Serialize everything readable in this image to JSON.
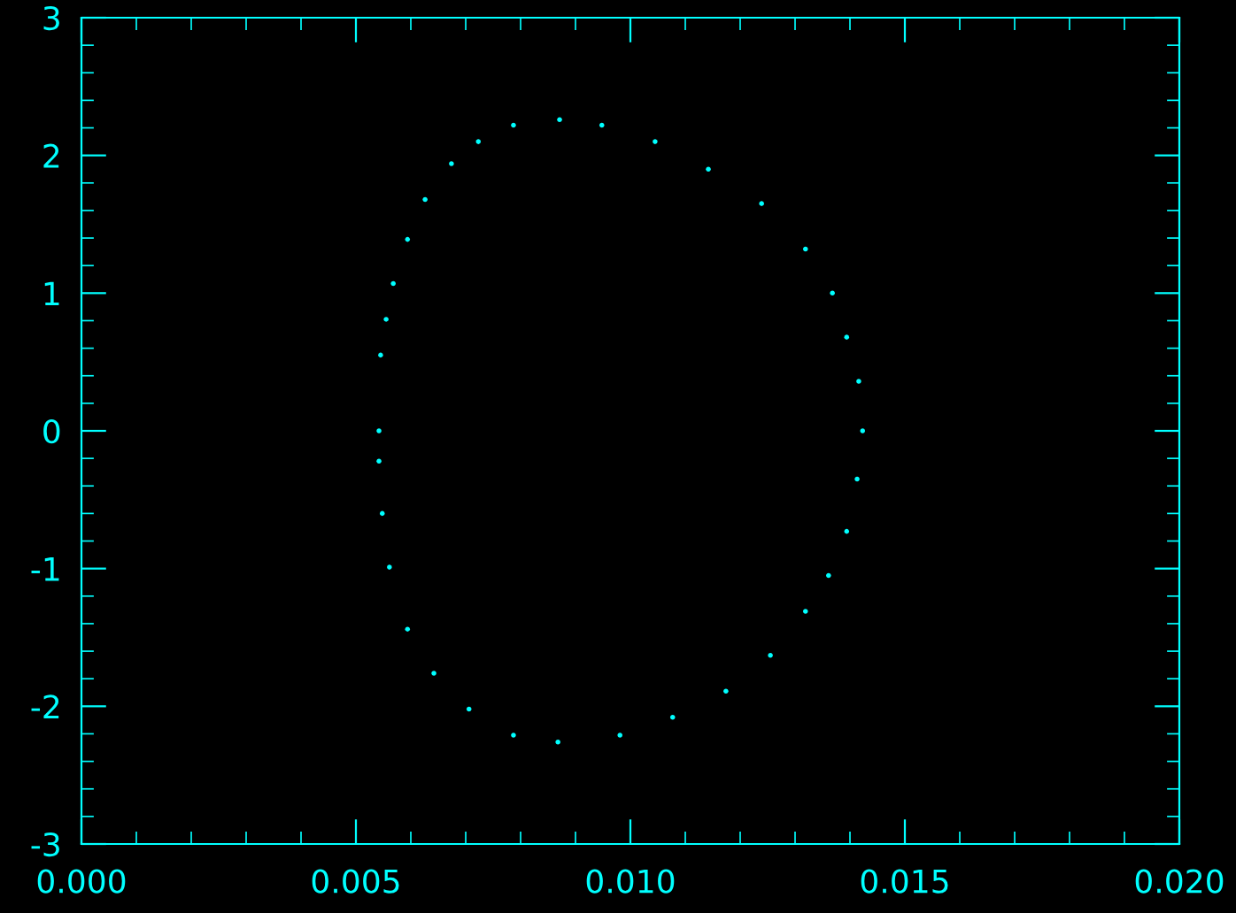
{
  "chart_data": {
    "type": "scatter",
    "x": [
      0.00542,
      0.00545,
      0.00555,
      0.00568,
      0.00594,
      0.00626,
      0.00674,
      0.00723,
      0.00787,
      0.00871,
      0.00948,
      0.01045,
      0.01142,
      0.01239,
      0.01319,
      0.01368,
      0.01394,
      0.01416,
      0.01423,
      0.01413,
      0.01394,
      0.01361,
      0.01319,
      0.01255,
      0.01174,
      0.01077,
      0.00981,
      0.00868,
      0.00787,
      0.00706,
      0.00642,
      0.00594,
      0.00561,
      0.00548,
      0.00542
    ],
    "series": [
      {
        "color": "#00ffff",
        "values": [
          0,
          0.55,
          0.81,
          1.07,
          1.39,
          1.68,
          1.94,
          2.1,
          2.22,
          2.26,
          2.22,
          2.1,
          1.9,
          1.65,
          1.32,
          1.0,
          0.68,
          0.36,
          0,
          -0.35,
          -0.73,
          -1.05,
          -1.31,
          -1.63,
          -1.89,
          -2.08,
          -2.21,
          -2.26,
          -2.21,
          -2.02,
          -1.76,
          -1.44,
          -0.99,
          -0.6,
          -0.22
        ]
      }
    ],
    "xlim": [
      0,
      0.02
    ],
    "ylim": [
      -3,
      3
    ],
    "xticks": [
      {
        "value": 0,
        "label": "0.000"
      },
      {
        "value": 0.005,
        "label": "0.005"
      },
      {
        "value": 0.01,
        "label": "0.010"
      },
      {
        "value": 0.015,
        "label": "0.015"
      },
      {
        "value": 0.02,
        "label": "0.020"
      }
    ],
    "yticks": [
      {
        "value": -3,
        "label": "-3"
      },
      {
        "value": -2,
        "label": "-2"
      },
      {
        "value": -1,
        "label": "-1"
      },
      {
        "value": 0,
        "label": "0"
      },
      {
        "value": 1,
        "label": "1"
      },
      {
        "value": 2,
        "label": "2"
      },
      {
        "value": 3,
        "label": "3"
      }
    ],
    "marker": "circle",
    "grid": false
  }
}
